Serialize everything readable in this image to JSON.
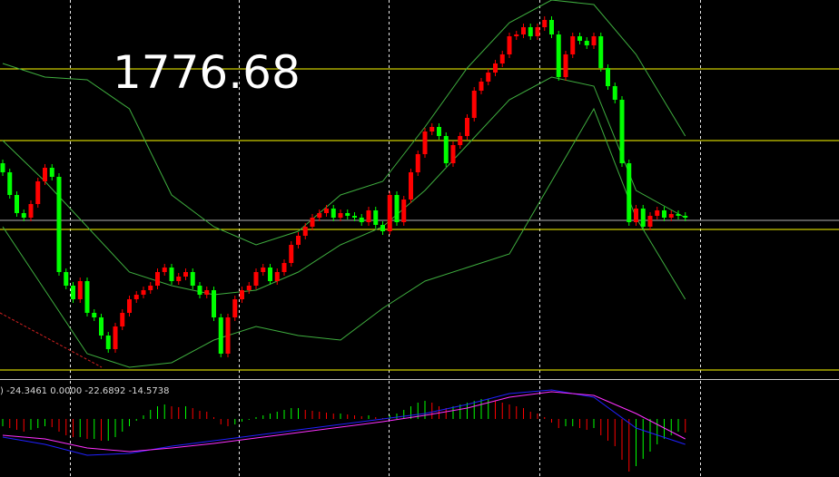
{
  "label": "1776.68",
  "indicator_label": ") -24.3461 0.0000 -22.6892 -14.5738",
  "chart_data": [
    {
      "type": "candlestick",
      "xlim": [
        -0.387,
        118.839
      ],
      "ylim": [
        1706,
        1810
      ],
      "up_color": "#ff0000",
      "down_color": "#00ff00",
      "open": [
        1765,
        1762.5,
        1756.25,
        1751.25,
        1750,
        1753.75,
        1760,
        1763.75,
        1761.25,
        1735,
        1731.25,
        1727.5,
        1732.5,
        1723.75,
        1722.5,
        1717.5,
        1713.75,
        1720,
        1723.75,
        1727.5,
        1728.75,
        1730,
        1731.25,
        1735,
        1736.25,
        1732.5,
        1733.75,
        1735,
        1731.25,
        1728.75,
        1730,
        1722.5,
        1712.5,
        1722.5,
        1727.5,
        1730,
        1731.25,
        1735,
        1736.25,
        1732.5,
        1735,
        1737.5,
        1742.5,
        1745,
        1747.5,
        1750,
        1751.25,
        1752.5,
        1750,
        1751.25,
        1750.5,
        1750,
        1748.75,
        1752,
        1748,
        1746.25,
        1756.25,
        1748.75,
        1755,
        1762.5,
        1767.5,
        1773.75,
        1775,
        1772.5,
        1765,
        1770,
        1772.5,
        1777.5,
        1785,
        1787.5,
        1790,
        1792.5,
        1795,
        1800,
        1800.5,
        1802.5,
        1800,
        1802.5,
        1804.5,
        1800.5,
        1788.75,
        1795,
        1800,
        1798.75,
        1797.5,
        1800,
        1791.25,
        1786.25,
        1782.5,
        1765,
        1748.75,
        1752.5,
        1747.5,
        1750.5,
        1752,
        1750,
        1751,
        1750.5
      ],
      "high": [
        1766,
        1763.5,
        1757.25,
        1752.25,
        1754.75,
        1761,
        1764.75,
        1764.75,
        1762.25,
        1736,
        1732.25,
        1733.5,
        1733.5,
        1724.75,
        1723.5,
        1718.5,
        1721,
        1724.75,
        1728.5,
        1729.75,
        1731,
        1732.25,
        1736,
        1737.25,
        1737.25,
        1734.75,
        1736,
        1736,
        1732.25,
        1731,
        1731,
        1723.5,
        1723.5,
        1728.5,
        1731,
        1732.25,
        1736,
        1737.25,
        1737.25,
        1736,
        1738.5,
        1743.5,
        1746,
        1748.5,
        1751,
        1752.25,
        1753.5,
        1753.5,
        1752.25,
        1752.25,
        1751.5,
        1751,
        1753,
        1753,
        1749,
        1757.25,
        1757.25,
        1756,
        1763.5,
        1768.5,
        1774.75,
        1776,
        1776,
        1773.5,
        1771,
        1773.5,
        1778.5,
        1786,
        1788.5,
        1791,
        1793.5,
        1796,
        1801,
        1801.5,
        1803.5,
        1803.5,
        1803.5,
        1805.5,
        1805.5,
        1801.5,
        1796,
        1801,
        1801,
        1799.75,
        1801,
        1801,
        1792.25,
        1787.25,
        1783.5,
        1766,
        1753.5,
        1753.5,
        1751.5,
        1753,
        1753,
        1752,
        1752,
        1751.5
      ],
      "low": [
        1761.5,
        1755.25,
        1750.25,
        1749,
        1749,
        1752.75,
        1759,
        1760.25,
        1734,
        1730.25,
        1726.5,
        1726.5,
        1722.75,
        1721.5,
        1716.5,
        1712.75,
        1712.75,
        1719,
        1722.75,
        1726.5,
        1727.75,
        1729,
        1730.25,
        1734,
        1731.5,
        1731.5,
        1732.75,
        1730.25,
        1727.75,
        1727.75,
        1721.5,
        1711.5,
        1711.5,
        1721.5,
        1726.5,
        1729,
        1730.25,
        1734,
        1731.5,
        1731.5,
        1734,
        1736.5,
        1741.5,
        1744,
        1746.5,
        1749,
        1750.25,
        1749,
        1749,
        1749.5,
        1749,
        1747.75,
        1747.75,
        1747,
        1745.25,
        1745.25,
        1747.75,
        1747.75,
        1754,
        1761.5,
        1766.5,
        1772.75,
        1771.5,
        1764,
        1764,
        1769,
        1771.5,
        1776.5,
        1784,
        1786.5,
        1789,
        1791.5,
        1794,
        1799,
        1799.5,
        1799,
        1799,
        1801.5,
        1799.5,
        1787.75,
        1787.75,
        1794,
        1797.75,
        1796.5,
        1796.5,
        1790.25,
        1785.25,
        1781.5,
        1764,
        1747.75,
        1747.75,
        1746.5,
        1746.5,
        1749.5,
        1749,
        1749,
        1749.5,
        1749
      ],
      "close": [
        1762.5,
        1756.25,
        1751.25,
        1750,
        1753.75,
        1760,
        1763.75,
        1761.25,
        1735,
        1731.25,
        1727.5,
        1732.5,
        1723.75,
        1722.5,
        1717.5,
        1713.75,
        1720,
        1723.75,
        1727.5,
        1728.75,
        1730,
        1731.25,
        1735,
        1736.25,
        1732.5,
        1733.75,
        1735,
        1731.25,
        1728.75,
        1730,
        1722.5,
        1712.5,
        1722.5,
        1727.5,
        1730,
        1731.25,
        1735,
        1736.25,
        1732.5,
        1735,
        1737.5,
        1742.5,
        1745,
        1747.5,
        1750,
        1751.25,
        1752.5,
        1750,
        1751.25,
        1750.5,
        1750,
        1748.75,
        1752,
        1748,
        1746.25,
        1756.25,
        1748.75,
        1755,
        1762.5,
        1767.5,
        1773.75,
        1775,
        1772.5,
        1765,
        1770,
        1772.5,
        1777.5,
        1785,
        1787.5,
        1790,
        1792.5,
        1795,
        1800,
        1800.5,
        1802.5,
        1800,
        1802.5,
        1804.5,
        1800.5,
        1788.75,
        1795,
        1800,
        1798.75,
        1797.5,
        1800,
        1791.25,
        1786.25,
        1782.5,
        1765,
        1748.75,
        1752.5,
        1747.5,
        1750.5,
        1752,
        1750,
        1751,
        1750.5,
        1750
      ],
      "levels": [
        1791,
        1771.25,
        1746.75,
        1708
      ],
      "level_color": "#ffff00",
      "price_line": 1749.25,
      "price_line_color": "#b0b0b0",
      "bands": [
        {
          "color": "#3fae3f",
          "x": [
            0,
            6,
            12,
            18,
            24,
            30,
            36,
            42,
            48,
            54,
            60,
            66,
            72,
            78,
            84,
            90,
            97
          ],
          "values": [
            1792.5,
            1788.75,
            1788,
            1780,
            1756.25,
            1747.5,
            1742.5,
            1746.25,
            1756.25,
            1760,
            1775,
            1791.25,
            1803.75,
            1810,
            1808.75,
            1795,
            1772.5
          ]
        },
        {
          "color": "#3fae3f",
          "x": [
            0,
            6,
            12,
            18,
            24,
            30,
            36,
            42,
            48,
            54,
            60,
            66,
            72,
            78,
            84,
            90,
            97
          ],
          "values": [
            1771.25,
            1760,
            1747.5,
            1735,
            1731.25,
            1728.75,
            1730,
            1735,
            1742.5,
            1747.5,
            1757.5,
            1770,
            1782.5,
            1788.75,
            1786.25,
            1757.5,
            1750
          ]
        },
        {
          "color": "#3fae3f",
          "x": [
            0,
            6,
            12,
            18,
            24,
            30,
            36,
            42,
            48,
            54,
            60,
            66,
            72,
            78,
            84,
            90,
            97
          ],
          "values": [
            1747.5,
            1730,
            1712.5,
            1708.75,
            1710,
            1716.25,
            1720,
            1717.5,
            1716.25,
            1725,
            1732.5,
            1736.25,
            1740,
            1760,
            1780,
            1750,
            1727.5
          ]
        }
      ]
    },
    {
      "type": "macd",
      "xlim": [
        -0.387,
        118.839
      ],
      "ylim": [
        -64,
        42
      ],
      "up_color": "#00ff00",
      "down_color": "#ff0000",
      "histogram": [
        -8,
        -10,
        -12,
        -14,
        -12,
        -10,
        -8,
        -9,
        -14,
        -18,
        -20,
        -20,
        -22,
        -22,
        -24,
        -24,
        -20,
        -14,
        -8,
        -2,
        4,
        10,
        14,
        16,
        14,
        13,
        14,
        12,
        9,
        8,
        2,
        -6,
        -8,
        -6,
        -3,
        -1,
        2,
        4,
        6,
        8,
        10,
        12,
        12,
        10,
        9,
        8,
        7,
        6,
        6,
        5,
        4,
        3,
        4,
        2,
        1,
        4,
        6,
        10,
        14,
        18,
        20,
        18,
        14,
        12,
        14,
        16,
        18,
        20,
        22,
        22,
        20,
        18,
        16,
        14,
        12,
        8,
        6,
        2,
        -4,
        -10,
        -8,
        -8,
        -10,
        -12,
        -10,
        -18,
        -24,
        -30,
        -45,
        -58,
        -52,
        -44,
        -36,
        -28,
        -22,
        -18,
        -14,
        -15
      ],
      "series": [
        {
          "color": "#2020ff",
          "x": [
            0,
            6,
            12,
            18,
            24,
            30,
            36,
            42,
            48,
            54,
            60,
            66,
            72,
            78,
            84,
            90,
            97
          ],
          "values": [
            -20,
            -28,
            -40,
            -38,
            -30,
            -24,
            -18,
            -12,
            -6,
            0,
            6,
            16,
            28,
            32,
            24,
            -10,
            -28
          ]
        },
        {
          "color": "#ff30ff",
          "x": [
            0,
            6,
            12,
            18,
            24,
            30,
            36,
            42,
            48,
            54,
            60,
            66,
            72,
            78,
            84,
            90,
            97
          ],
          "values": [
            -18,
            -22,
            -32,
            -36,
            -32,
            -27,
            -21,
            -15,
            -9,
            -3,
            4,
            12,
            24,
            30,
            26,
            6,
            -22
          ]
        }
      ]
    }
  ]
}
